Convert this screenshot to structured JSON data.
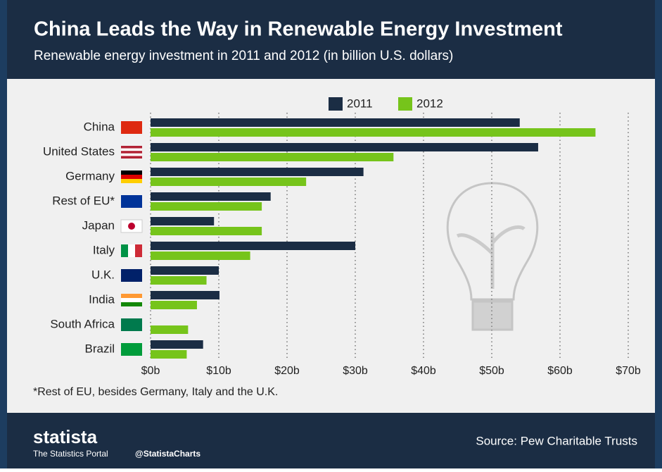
{
  "chart_data": {
    "type": "hbar",
    "title": "China Leads the Way in Renewable Energy Investment",
    "subtitle": "Renewable energy investment in 2011 and 2012 (in billion U.S. dollars)",
    "categories": [
      "China",
      "United States",
      "Germany",
      "Rest of EU*",
      "Japan",
      "Italy",
      "U.K.",
      "India",
      "South Africa",
      "Brazil"
    ],
    "series": [
      {
        "name": "2011",
        "color": "#1b2d44",
        "values": [
          54.1,
          56.8,
          31.2,
          17.6,
          9.3,
          30.0,
          10.0,
          10.1,
          0,
          7.7
        ]
      },
      {
        "name": "2012",
        "color": "#76c41b",
        "values": [
          65.2,
          35.6,
          22.8,
          16.3,
          16.3,
          14.6,
          8.2,
          6.8,
          5.5,
          5.3
        ]
      }
    ],
    "xlim": [
      0,
      70
    ],
    "xticks": [
      {
        "value": 0,
        "label": "$0b"
      },
      {
        "value": 10,
        "label": "$10b"
      },
      {
        "value": 20,
        "label": "$20b"
      },
      {
        "value": 30,
        "label": "$30b"
      },
      {
        "value": 40,
        "label": "$40b"
      },
      {
        "value": 50,
        "label": "$50b"
      },
      {
        "value": 60,
        "label": "$60b"
      },
      {
        "value": 70,
        "label": "$70b"
      }
    ],
    "grid": true,
    "legend": "top",
    "note": "*Rest of EU, besides Germany, Italy and the U.K."
  },
  "footer": {
    "brand": "statista",
    "tagline": "The Statistics Portal",
    "handle": "@StatistaCharts",
    "source": "Source: Pew Charitable Trusts"
  }
}
